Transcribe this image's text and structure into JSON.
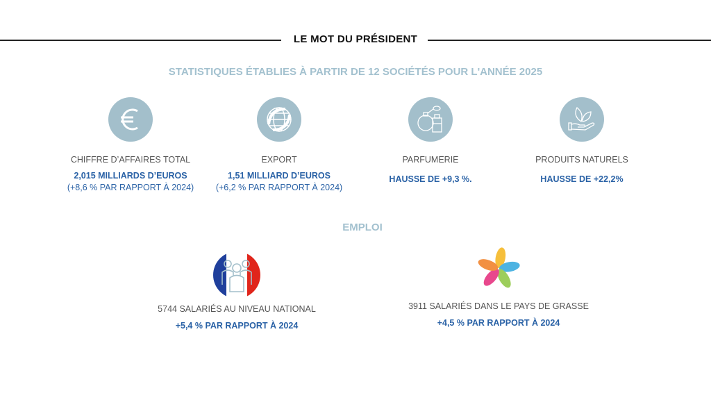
{
  "header": {
    "title": "LE MOT DU PRÉSIDENT"
  },
  "subtitle": "STATISTIQUES ÉTABLIES À PARTIR DE 12 SOCIÉTÉS POUR L'ANNÉE 2025",
  "stats": [
    {
      "icon": "euro-icon",
      "label": "CHIFFRE D’AFFAIRES TOTAL",
      "value": "2,015 MILLIARDS D’EUROS",
      "detail": "(+8,6 % PAR RAPPORT À 2024)"
    },
    {
      "icon": "globe-icon",
      "label": "EXPORT",
      "value": "1,51 MILLIARD D’EUROS",
      "detail": "(+6,2 % PAR RAPPORT À 2024)"
    },
    {
      "icon": "perfume-icon",
      "label": "PARFUMERIE",
      "value": "HAUSSE DE +9,3 %."
    },
    {
      "icon": "leaf-hand-icon",
      "label": "PRODUITS NATURELS",
      "value": "HAUSSE DE +22,2%"
    }
  ],
  "emploi": {
    "title": "EMPLOI",
    "items": [
      {
        "icon": "france-people-icon",
        "label": "5744 SALARIÉS AU NIVEAU NATIONAL",
        "value": "+5,4 % PAR RAPPORT À 2024"
      },
      {
        "icon": "flower-logo-icon",
        "label": "3911 SALARIÉS DANS LE PAYS DE GRASSE",
        "value": "+4,5 % PAR RAPPORT À 2024"
      }
    ]
  },
  "colors": {
    "accent": "#a3bfcb",
    "value": "#2a62a6"
  }
}
